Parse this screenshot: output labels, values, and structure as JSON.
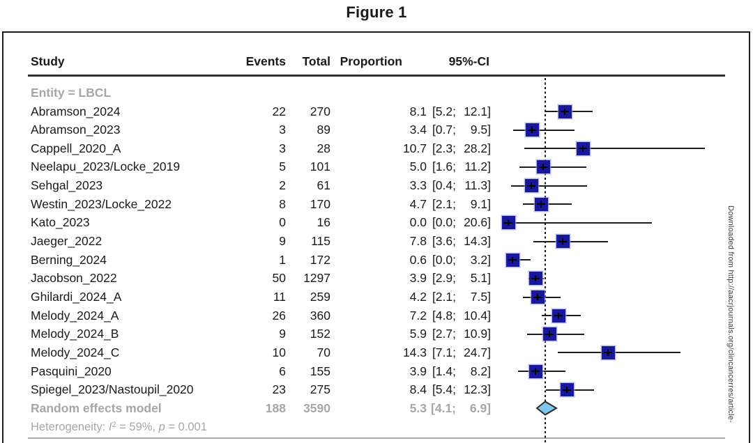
{
  "chart_data": {
    "type": "forest",
    "title": "Figure 1",
    "columns": {
      "study": "Study",
      "events": "Events",
      "total": "Total",
      "proportion": "Proportion",
      "ci": "95%-CI"
    },
    "group_label": "Entity = LBCL",
    "studies": [
      {
        "name": "Abramson_2024",
        "events": 22,
        "total": 270,
        "proportion": 8.1,
        "ci": [
          5.2,
          12.1
        ]
      },
      {
        "name": "Abramson_2023",
        "events": 3,
        "total": 89,
        "proportion": 3.4,
        "ci": [
          0.7,
          9.5
        ]
      },
      {
        "name": "Cappell_2020_A",
        "events": 3,
        "total": 28,
        "proportion": 10.7,
        "ci": [
          2.3,
          28.2
        ]
      },
      {
        "name": "Neelapu_2023/Locke_2019",
        "events": 5,
        "total": 101,
        "proportion": 5.0,
        "ci": [
          1.6,
          11.2
        ]
      },
      {
        "name": "Sehgal_2023",
        "events": 2,
        "total": 61,
        "proportion": 3.3,
        "ci": [
          0.4,
          11.3
        ]
      },
      {
        "name": "Westin_2023/Locke_2022",
        "events": 8,
        "total": 170,
        "proportion": 4.7,
        "ci": [
          2.1,
          9.1
        ]
      },
      {
        "name": "Kato_2023",
        "events": 0,
        "total": 16,
        "proportion": 0.0,
        "ci": [
          0.0,
          20.6
        ]
      },
      {
        "name": "Jaeger_2022",
        "events": 9,
        "total": 115,
        "proportion": 7.8,
        "ci": [
          3.6,
          14.3
        ]
      },
      {
        "name": "Berning_2024",
        "events": 1,
        "total": 172,
        "proportion": 0.6,
        "ci": [
          0.0,
          3.2
        ]
      },
      {
        "name": "Jacobson_2022",
        "events": 50,
        "total": 1297,
        "proportion": 3.9,
        "ci": [
          2.9,
          5.1
        ]
      },
      {
        "name": "Ghilardi_2024_A",
        "events": 11,
        "total": 259,
        "proportion": 4.2,
        "ci": [
          2.1,
          7.5
        ]
      },
      {
        "name": "Melody_2024_A",
        "events": 26,
        "total": 360,
        "proportion": 7.2,
        "ci": [
          4.8,
          10.4
        ]
      },
      {
        "name": "Melody_2024_B",
        "events": 9,
        "total": 152,
        "proportion": 5.9,
        "ci": [
          2.7,
          10.9
        ]
      },
      {
        "name": "Melody_2024_C",
        "events": 10,
        "total": 70,
        "proportion": 14.3,
        "ci": [
          7.1,
          24.7
        ]
      },
      {
        "name": "Pasquini_2020",
        "events": 6,
        "total": 155,
        "proportion": 3.9,
        "ci": [
          1.4,
          8.2
        ]
      },
      {
        "name": "Spiegel_2023/Nastoupil_2020",
        "events": 23,
        "total": 275,
        "proportion": 8.4,
        "ci": [
          5.4,
          12.3
        ]
      }
    ],
    "summary": {
      "name": "Random effects model",
      "events": 188,
      "total": 3590,
      "proportion": 5.3,
      "ci": [
        4.1,
        6.9
      ]
    },
    "heterogeneity": {
      "prefix": "Heterogeneity: ",
      "stat_label": "I",
      "stat_sup": "2",
      "stat_rest": " = 59%, ",
      "p_label": "p",
      "p_rest": " = 0.001"
    },
    "x_axis": {
      "min": 0,
      "max": 28.2,
      "reference_line": 5.3,
      "gridlines": false,
      "legend": "none"
    },
    "colors": {
      "square": "#18189B",
      "diamond_fill": "#7EC8F0",
      "diamond_border": "#2B2B2B",
      "muted_text": "#A6A6A6",
      "ink": "#1A1A1A"
    }
  },
  "watermark": {
    "text": "Downloaded from http://aacrjournals.org/clincancerres/article-"
  }
}
